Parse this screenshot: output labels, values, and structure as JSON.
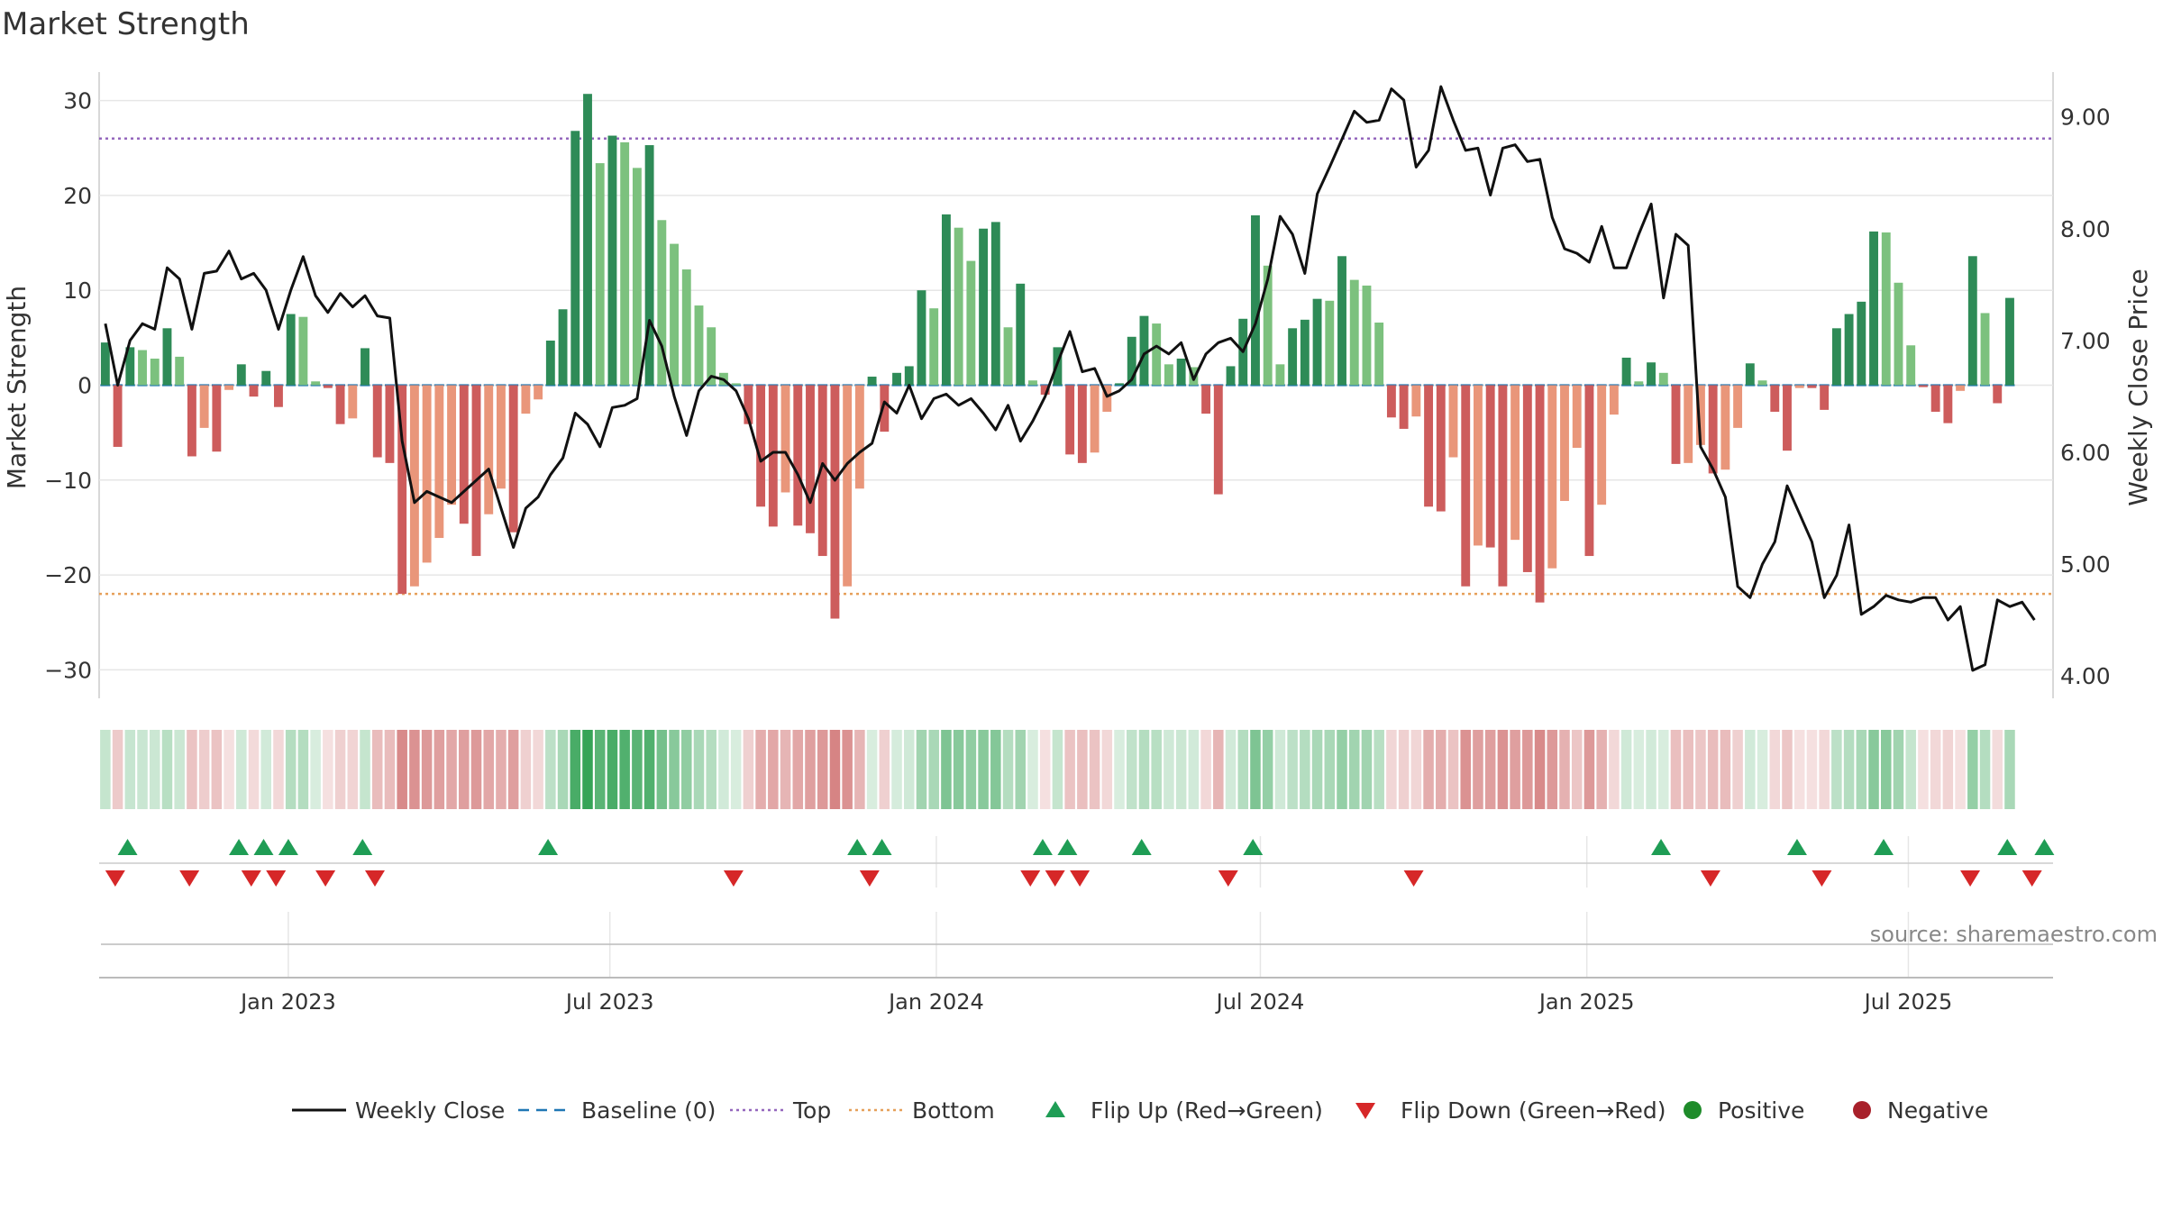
{
  "chart_data": {
    "type": "bar",
    "title": "Market Strength",
    "ylabel_left": "Market Strength",
    "ylabel_right": "Weekly Close Price",
    "source": "source: sharemaestro.com",
    "ylim_left": [
      -33,
      33
    ],
    "yticks_left": [
      30,
      20,
      10,
      0,
      -10,
      -20,
      -30
    ],
    "ytick_labels_left": [
      "30",
      "20",
      "10",
      "0",
      "−10",
      "−20",
      "−30"
    ],
    "ylim_right": [
      3.8,
      9.4
    ],
    "yticks_right": [
      9,
      8,
      7,
      6,
      5,
      4
    ],
    "ytick_labels_right": [
      "9.00",
      "8.00",
      "7.00",
      "6.00",
      "5.00",
      "4.00"
    ],
    "top_level": 26,
    "bottom_level": -22,
    "x_range": [
      0,
      158
    ],
    "xticks": [
      15.3,
      41.3,
      67.7,
      93.9,
      120.3,
      146.3
    ],
    "xtick_labels": [
      "Jan 2023",
      "Jul 2023",
      "Jan 2024",
      "Jul 2024",
      "Jan 2025",
      "Jul 2025"
    ],
    "strength": [
      4.5,
      -6.5,
      4,
      3.7,
      2.8,
      6,
      3,
      -7.5,
      -4.5,
      -7,
      -0.5,
      2.2,
      -1.2,
      1.5,
      -2.3,
      7.5,
      7.2,
      0.4,
      -0.3,
      -4.1,
      -3.5,
      3.9,
      -7.6,
      -8.2,
      -22,
      -21.2,
      -18.7,
      -16.1,
      -12.6,
      -14.6,
      -18,
      -13.6,
      -10.9,
      -15.5,
      -3,
      -1.5,
      4.7,
      8,
      26.8,
      30.7,
      23.4,
      26.3,
      25.6,
      22.9,
      25.3,
      17.4,
      14.9,
      12.2,
      8.4,
      6.1,
      1.3,
      0.2,
      -4.1,
      -12.8,
      -14.9,
      -11.3,
      -14.8,
      -15.6,
      -18,
      -24.6,
      -21.2,
      -10.9,
      0.9,
      -4.9,
      1.3,
      2,
      10,
      8.1,
      18,
      16.6,
      13.1,
      16.5,
      17.2,
      6.1,
      10.7,
      0.5,
      -1,
      4,
      -7.3,
      -8.2,
      -7.1,
      -2.8,
      0.2,
      5.1,
      7.3,
      6.5,
      2.2,
      2.8,
      1.9,
      -3,
      -11.5,
      2,
      7,
      17.9,
      12.6,
      2.2,
      6,
      6.9,
      9.1,
      8.9,
      13.6,
      11.1,
      10.5,
      6.6,
      -3.4,
      -4.6,
      -3.3,
      -12.8,
      -13.3,
      -7.6,
      -21.2,
      -16.9,
      -17.1,
      -21.2,
      -16.3,
      -19.7,
      -22.9,
      -19.3,
      -12.2,
      -6.6,
      -18,
      -12.6,
      -3.1,
      2.9,
      0.4,
      2.4,
      1.3,
      -8.3,
      -8.2,
      -6.3,
      -9.3,
      -8.9,
      -4.5,
      2.3,
      0.5,
      -2.8,
      -6.9,
      -0.3,
      -0.3,
      -2.6,
      6,
      7.5,
      8.8,
      16.2,
      16.1,
      10.8,
      4.2,
      -0.2,
      -2.8,
      -4,
      -0.6,
      13.6,
      7.6,
      -1.9,
      9.2
    ],
    "weekly_close": [
      7.15,
      6.6,
      7.0,
      7.15,
      7.1,
      7.65,
      7.55,
      7.1,
      7.6,
      7.62,
      7.8,
      7.55,
      7.6,
      7.45,
      7.1,
      7.45,
      7.75,
      7.4,
      7.25,
      7.42,
      7.3,
      7.4,
      7.22,
      7.2,
      6.1,
      5.55,
      5.65,
      5.6,
      5.55,
      5.65,
      5.75,
      5.85,
      5.5,
      5.15,
      5.5,
      5.6,
      5.8,
      5.95,
      6.35,
      6.25,
      6.05,
      6.4,
      6.42,
      6.48,
      7.18,
      6.95,
      6.5,
      6.15,
      6.55,
      6.68,
      6.65,
      6.55,
      6.3,
      5.92,
      6.0,
      6.0,
      5.8,
      5.55,
      5.9,
      5.75,
      5.9,
      6.0,
      6.08,
      6.45,
      6.35,
      6.6,
      6.3,
      6.48,
      6.52,
      6.42,
      6.48,
      6.35,
      6.2,
      6.42,
      6.1,
      6.28,
      6.5,
      6.8,
      7.08,
      6.72,
      6.75,
      6.5,
      6.55,
      6.65,
      6.88,
      6.95,
      6.88,
      6.98,
      6.65,
      6.88,
      6.98,
      7.02,
      6.9,
      7.15,
      7.55,
      8.11,
      7.95,
      7.6,
      8.31,
      8.55,
      8.8,
      9.05,
      8.95,
      8.97,
      9.25,
      9.15,
      8.55,
      8.7,
      9.27,
      8.97,
      8.7,
      8.72,
      8.3,
      8.72,
      8.75,
      8.6,
      8.62,
      8.1,
      7.82,
      7.78,
      7.7,
      8.02,
      7.65,
      7.65,
      7.95,
      8.22,
      7.38,
      7.95,
      7.85,
      6.05,
      5.85,
      5.6,
      4.8,
      4.7,
      5.0,
      5.2,
      5.7,
      5.45,
      5.2,
      4.7,
      4.9,
      5.35,
      4.55,
      4.62,
      4.72,
      4.68,
      4.66,
      4.7,
      4.7,
      4.5,
      4.62,
      4.05,
      4.1,
      4.68,
      4.62,
      4.66,
      4.5
    ],
    "heat_strip": [
      0.15,
      -0.2,
      0.14,
      0.13,
      0.12,
      0.22,
      0.12,
      -0.25,
      -0.18,
      -0.25,
      -0.05,
      0.1,
      -0.08,
      0.08,
      -0.1,
      0.25,
      0.25,
      0.05,
      -0.05,
      -0.15,
      -0.13,
      0.15,
      -0.3,
      -0.3,
      -0.65,
      -0.6,
      -0.55,
      -0.5,
      -0.45,
      -0.5,
      -0.55,
      -0.45,
      -0.4,
      -0.5,
      -0.15,
      -0.1,
      0.2,
      0.3,
      0.85,
      0.95,
      0.75,
      0.85,
      0.8,
      0.75,
      0.8,
      0.6,
      0.5,
      0.45,
      0.3,
      0.25,
      0.08,
      0.05,
      -0.15,
      -0.4,
      -0.45,
      -0.35,
      -0.45,
      -0.5,
      -0.55,
      -0.7,
      -0.6,
      -0.35,
      0.05,
      -0.15,
      0.06,
      0.1,
      0.35,
      0.3,
      0.55,
      0.5,
      0.45,
      0.5,
      0.52,
      0.25,
      0.35,
      0.05,
      -0.05,
      0.15,
      -0.25,
      -0.28,
      -0.25,
      -0.1,
      0.05,
      0.18,
      0.25,
      0.22,
      0.1,
      0.12,
      0.08,
      -0.1,
      -0.35,
      0.08,
      0.25,
      0.55,
      0.42,
      0.1,
      0.2,
      0.25,
      0.3,
      0.3,
      0.42,
      0.35,
      0.35,
      0.22,
      -0.12,
      -0.15,
      -0.12,
      -0.4,
      -0.4,
      -0.25,
      -0.6,
      -0.5,
      -0.5,
      -0.6,
      -0.5,
      -0.55,
      -0.65,
      -0.55,
      -0.38,
      -0.22,
      -0.55,
      -0.38,
      -0.1,
      0.1,
      0.05,
      0.08,
      0.05,
      -0.28,
      -0.28,
      -0.22,
      -0.3,
      -0.3,
      -0.15,
      0.08,
      0.05,
      -0.1,
      -0.22,
      -0.05,
      -0.05,
      -0.1,
      0.2,
      0.25,
      0.3,
      0.5,
      0.5,
      0.35,
      0.15,
      -0.05,
      -0.1,
      -0.13,
      -0.05,
      0.42,
      0.25,
      -0.07,
      0.3
    ],
    "flip_up": [
      2.3,
      11.3,
      13.3,
      15.3,
      21.3,
      36.3,
      61.3,
      63.3,
      76.3,
      78.3,
      84.3,
      93.3,
      126.3,
      137.3,
      144.3,
      154.3,
      157.3
    ],
    "flip_down": [
      1.3,
      7.3,
      12.3,
      14.3,
      18.3,
      22.3,
      51.3,
      62.3,
      75.3,
      77.3,
      79.3,
      91.3,
      106.3,
      130.3,
      139.3,
      151.3,
      156.3
    ],
    "legend": [
      {
        "label": "Weekly Close",
        "kind": "line",
        "color": "#111111"
      },
      {
        "label": "Baseline (0)",
        "kind": "dash",
        "color": "#1f77b4"
      },
      {
        "label": "Top",
        "kind": "dot",
        "color": "#9467bd"
      },
      {
        "label": "Bottom",
        "kind": "dot",
        "color": "#e6a05a"
      },
      {
        "label": "Flip Up (Red→Green)",
        "kind": "up",
        "color": "#1f9d55"
      },
      {
        "label": "Flip Down (Green→Red)",
        "kind": "down",
        "color": "#d62728"
      },
      {
        "label": "Positive",
        "kind": "circle",
        "color": "#1e8b2a"
      },
      {
        "label": "Negative",
        "kind": "circle",
        "color": "#a8202a"
      }
    ],
    "colors": {
      "pos_strong": "#2e8b57",
      "pos_weak": "#7cc17e",
      "neg_strong": "#cd5c5c",
      "neg_weak": "#e9967a",
      "line": "#111111",
      "baseline": "#1f77b4",
      "top": "#9467bd",
      "bottom": "#e6a05a",
      "flip_up": "#1f9d55",
      "flip_down": "#d62728",
      "grid": "#e6e6e6",
      "axis": "#cccccc",
      "text": "#333333"
    }
  }
}
